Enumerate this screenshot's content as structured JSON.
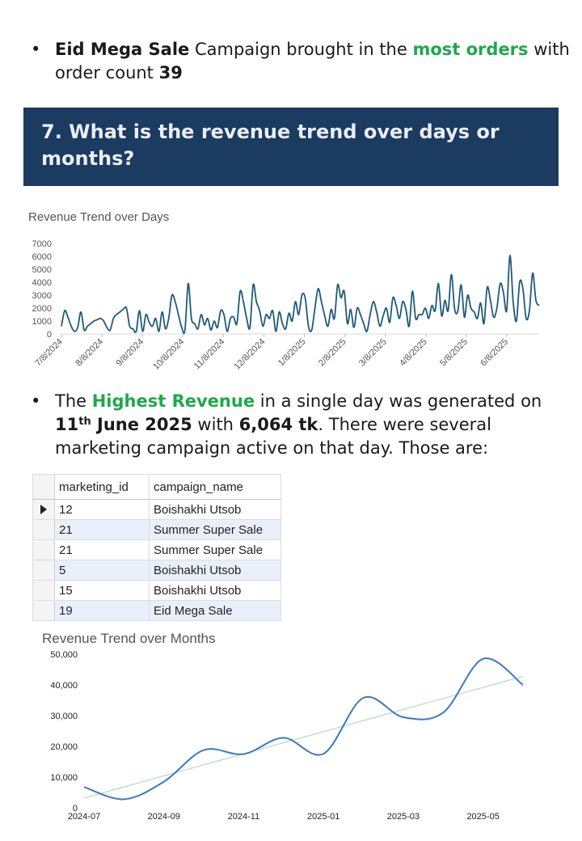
{
  "bullet1": {
    "dot": "•",
    "campaign": "Eid Mega Sale",
    "text1": " Campaign brought in the ",
    "highlight": "most orders",
    "text2": " with order count ",
    "count": "39"
  },
  "section": {
    "heading": "7. What is the revenue trend over days or months?"
  },
  "days_chart_title": "Revenue Trend over Days",
  "bullet2": {
    "dot": "•",
    "text1": "The ",
    "highlight": "Highest Revenue",
    "text2": " in a single day was generated on ",
    "day": "11",
    "day_suffix": "th",
    "month_year": " June 2025",
    "text3": " with ",
    "amount": "6,064 tk",
    "text4": ".  There were several marketing campaign active on that day. Those are:"
  },
  "table": {
    "columns": [
      "marketing_id",
      "campaign_name"
    ],
    "rows": [
      [
        "12",
        "Boishakhi Utsob"
      ],
      [
        "21",
        "Summer Super Sale"
      ],
      [
        "21",
        "Summer Super Sale"
      ],
      [
        "5",
        "Boishakhi Utsob"
      ],
      [
        "15",
        "Boishakhi Utsob"
      ],
      [
        "19",
        "Eid Mega Sale"
      ]
    ]
  },
  "months_chart_title": "Revenue Trend over Months",
  "chart_data": [
    {
      "type": "line",
      "title": "Revenue Trend over Days",
      "xlabel": "",
      "ylabel": "",
      "ylim": [
        0,
        7000
      ],
      "yticks": [
        "0",
        "1000",
        "2000",
        "3000",
        "4000",
        "5000",
        "6000",
        "7000"
      ],
      "xticks": [
        "7/8/2024",
        "8/8/2024",
        "9/8/2024",
        "10/8/2024",
        "11/8/2024",
        "12/8/2024",
        "1/8/2025",
        "2/8/2025",
        "3/8/2025",
        "4/8/2025",
        "5/8/2025",
        "6/8/2025"
      ],
      "x_start": "2024-07-08",
      "color": "#1f5a7a",
      "series": [
        {
          "values": [
            600,
            1800,
            1300,
            600,
            200,
            500,
            1700,
            300,
            600,
            800,
            1000,
            1100,
            1200,
            1000,
            500,
            300,
            1200,
            1500,
            1700,
            1900,
            2000,
            600,
            400,
            200,
            1800,
            200,
            1500,
            900,
            600,
            1200,
            200,
            1700,
            400,
            1200,
            3000,
            2500,
            1500,
            500,
            300,
            3900,
            1200,
            800,
            400,
            1500,
            700,
            1200,
            300,
            1000,
            500,
            1800,
            1500,
            200,
            1200,
            1300,
            800,
            3300,
            2500,
            1200,
            500,
            3800,
            2500,
            1800,
            600,
            1500,
            1200,
            1800,
            200,
            1700,
            800,
            400,
            1600,
            1000,
            2500,
            1500,
            3000,
            2800,
            600,
            300,
            2000,
            3500,
            2500,
            1400,
            600,
            1900,
            1200,
            3800,
            2800,
            3300,
            800,
            1900,
            500,
            2000,
            1500,
            800,
            200,
            1500,
            2500,
            1700,
            600,
            1400,
            2000,
            900,
            2800,
            2200,
            1200,
            2500,
            1900,
            600,
            3300,
            1200,
            1500,
            1500,
            2000,
            1200,
            2200,
            1800,
            3900,
            1400,
            2600,
            1800,
            4600,
            1900,
            1800,
            3800,
            1300,
            3000,
            2000,
            1700,
            1200,
            2400,
            800,
            3600,
            2600,
            1300,
            2000,
            3900,
            3200,
            1800,
            6064,
            2500,
            1000,
            4000,
            3500,
            1200,
            1800,
            4700,
            2600,
            2200
          ]
        }
      ]
    },
    {
      "type": "line",
      "title": "Revenue Trend over Months",
      "xlabel": "",
      "ylabel": "",
      "ylim": [
        0,
        50000
      ],
      "yticks": [
        "0",
        "10,000",
        "20,000",
        "30,000",
        "40,000",
        "50,000"
      ],
      "x": [
        "2024-07",
        "2024-08",
        "2024-09",
        "2024-10",
        "2024-11",
        "2024-12",
        "2025-01",
        "2025-02",
        "2025-03",
        "2025-04",
        "2025-05",
        "2025-06"
      ],
      "xticks": [
        "2024-07",
        "2024-09",
        "2024-11",
        "2025-01",
        "2025-03",
        "2025-05"
      ],
      "color": "#3b78c4",
      "trend_color": "#b9dcc6",
      "series": [
        {
          "values": [
            6800,
            2800,
            8500,
            18800,
            17500,
            22800,
            17600,
            35800,
            29500,
            31000,
            48500,
            40000
          ]
        }
      ],
      "trendline": [
        3200,
        42800
      ]
    }
  ]
}
